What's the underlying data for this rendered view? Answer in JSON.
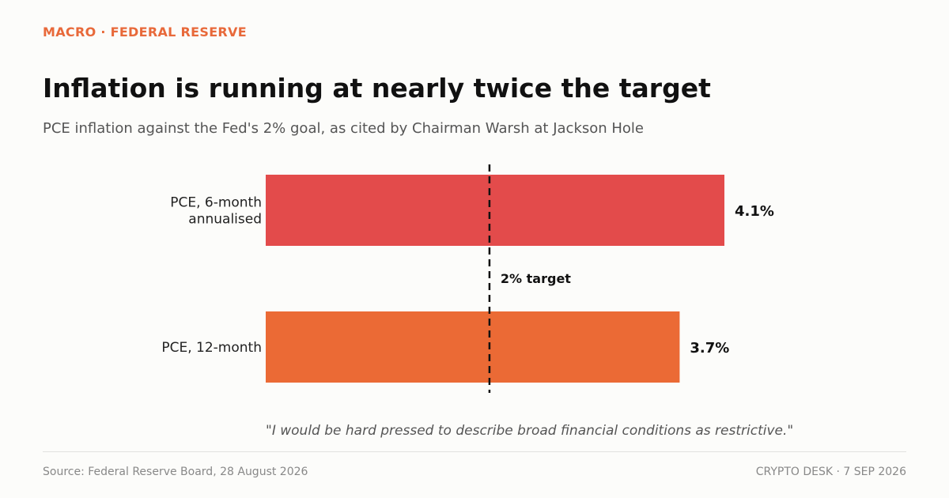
{
  "kicker": "MACRO · FEDERAL RESERVE",
  "title": "Inflation is running at nearly twice the target",
  "subtitle": "PCE inflation against the Fed's 2% goal, as cited by Chairman Warsh at Jackson Hole",
  "quote": "\"I would be hard pressed to describe broad financial conditions as restrictive.\"",
  "footer": {
    "source": "Source: Federal Reserve Board, 28 August 2026",
    "credit": "CRYPTO DESK  ·  7 SEP 2026"
  },
  "chart_data": {
    "type": "bar",
    "orientation": "horizontal",
    "categories": [
      [
        "PCE, 6-month",
        "annualised"
      ],
      [
        "PCE, 12-month"
      ]
    ],
    "values": [
      4.1,
      3.7
    ],
    "value_labels": [
      "4.1%",
      "3.7%"
    ],
    "colors": [
      "#e34b4b",
      "#eb6a35"
    ],
    "xlim": [
      0,
      4.1
    ],
    "reference_line": {
      "value": 2,
      "label": "2% target",
      "style": "dashed"
    },
    "grid": false,
    "legend": "none"
  }
}
